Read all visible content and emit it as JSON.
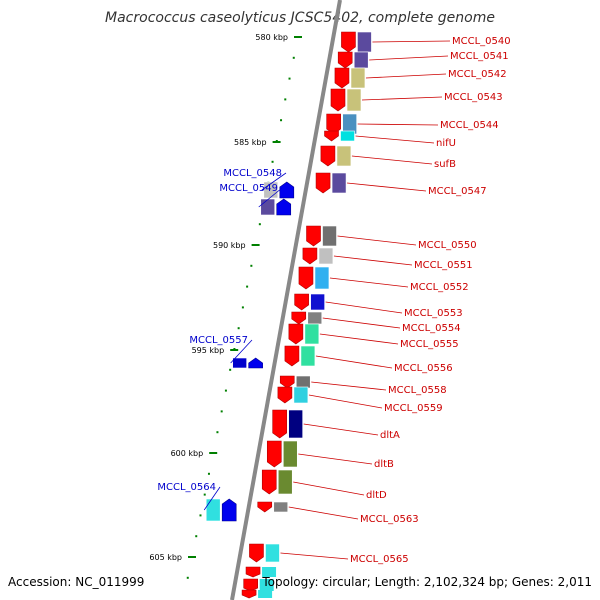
{
  "title": "Macrococcus caseolyticus JCSC5402, complete genome",
  "footer": {
    "accession": "Accession: NC_011999",
    "summary": "Topology: circular; Length: 2,102,324 bp; Genes: 2,011"
  },
  "colors": {
    "forward_label": "#cc0000",
    "reverse_label": "#0000cc",
    "backbone": "#888888",
    "tick": "#008000"
  },
  "ruler": [
    {
      "label": "580 kbp"
    },
    {
      "label": "585 kbp"
    },
    {
      "label": "590 kbp"
    },
    {
      "label": "595 kbp"
    },
    {
      "label": "600 kbp"
    },
    {
      "label": "605 kbp"
    }
  ],
  "genes": [
    {
      "label": "MCCL_0540",
      "strand": "+",
      "cog_color": "#5b4a9e"
    },
    {
      "label": "MCCL_0541",
      "strand": "+",
      "cog_color": "#5b4a9e"
    },
    {
      "label": "MCCL_0542",
      "strand": "+",
      "cog_color": "#c8c27a"
    },
    {
      "label": "MCCL_0543",
      "strand": "+",
      "cog_color": "#c8c27a"
    },
    {
      "label": "MCCL_0544",
      "strand": "+",
      "cog_color": "#4a90c0"
    },
    {
      "label": "nifU",
      "strand": "+",
      "cog_color": "#00e0e0"
    },
    {
      "label": "sufB",
      "strand": "+",
      "cog_color": "#c8c27a"
    },
    {
      "label": "MCCL_0547",
      "strand": "+",
      "cog_color": "#5b4a9e"
    },
    {
      "label": "MCCL_0548",
      "strand": "-",
      "cog_color": "#c0c0c0"
    },
    {
      "label": "MCCL_0549",
      "strand": "-",
      "cog_color": "#5b4a9e"
    },
    {
      "label": "MCCL_0550",
      "strand": "+",
      "cog_color": "#707070"
    },
    {
      "label": "MCCL_0551",
      "strand": "+",
      "cog_color": "#c0c0c0"
    },
    {
      "label": "MCCL_0552",
      "strand": "+",
      "cog_color": "#30b0f0"
    },
    {
      "label": "MCCL_0553",
      "strand": "+",
      "cog_color": "#1010d0"
    },
    {
      "label": "MCCL_0554",
      "strand": "+",
      "cog_color": "#808080"
    },
    {
      "label": "MCCL_0555",
      "strand": "+",
      "cog_color": "#30e0a0"
    },
    {
      "label": "MCCL_0556",
      "strand": "+",
      "cog_color": "#30e0a0"
    },
    {
      "label": "MCCL_0557",
      "strand": "-",
      "cog_color": "#0000cc"
    },
    {
      "label": "MCCL_0558",
      "strand": "+",
      "cog_color": "#707070"
    },
    {
      "label": "MCCL_0559",
      "strand": "+",
      "cog_color": "#30d0e0"
    },
    {
      "label": "dltA",
      "strand": "+",
      "cog_color": "#000080"
    },
    {
      "label": "dltB",
      "strand": "+",
      "cog_color": "#6a8a30"
    },
    {
      "label": "dltD",
      "strand": "+",
      "cog_color": "#6a8a30"
    },
    {
      "label": "MCCL_0563",
      "strand": "+",
      "cog_color": "#808080"
    },
    {
      "label": "MCCL_0564",
      "strand": "-",
      "cog_color": "#30e0e0"
    },
    {
      "label": "MCCL_0565",
      "strand": "+",
      "cog_color": "#30e0e0"
    }
  ]
}
